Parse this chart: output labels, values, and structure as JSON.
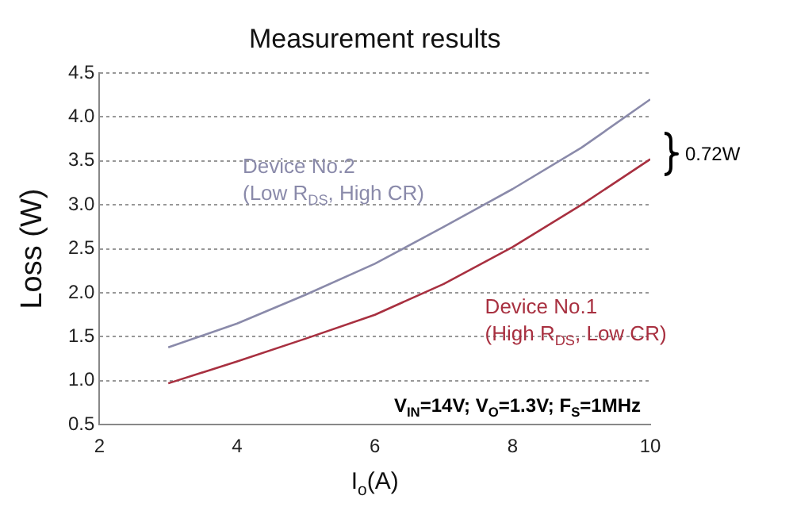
{
  "chart_data": {
    "type": "line",
    "title": "Measurement results",
    "xlabel": "I$_{o}$(A)",
    "ylabel": "Loss (W)",
    "x": [
      3,
      4,
      5,
      6,
      7,
      8,
      9,
      10
    ],
    "series": [
      {
        "name": "Device No.2",
        "color": "#8a8aaa",
        "values": [
          1.38,
          1.65,
          1.98,
          2.33,
          2.75,
          3.18,
          3.65,
          4.2
        ]
      },
      {
        "name": "Device No.1",
        "color": "#a83040",
        "values": [
          0.97,
          1.22,
          1.48,
          1.75,
          2.1,
          2.52,
          3.0,
          3.52
        ]
      }
    ],
    "xlim": [
      2,
      10
    ],
    "xticks": [
      2,
      4,
      6,
      8,
      10
    ],
    "ylim": [
      0.5,
      4.5
    ],
    "yticks": [
      {
        "value": 0.5,
        "label": "0.5"
      },
      {
        "value": 1,
        "label": "1.0"
      },
      {
        "value": 1.5,
        "label": "1.5"
      },
      {
        "value": 2,
        "label": "2.0"
      },
      {
        "value": 2.5,
        "label": "2.5"
      },
      {
        "value": 3,
        "label": "3.0"
      },
      {
        "value": 3.5,
        "label": "3.5"
      },
      {
        "value": 4,
        "label": "4.0"
      },
      {
        "value": 4.5,
        "label": "4.5"
      }
    ],
    "grid": "y",
    "legend": false,
    "marker": "none",
    "line_style": "solid",
    "annotations": [
      "(Low R$_{DS}$, High CR)",
      "(High R$_{DS}$, Low CR)",
      "0.72W",
      "V$_{IN}$=14V; V$_{O}$=1.3V; F$_{S}$=1MHz"
    ]
  }
}
